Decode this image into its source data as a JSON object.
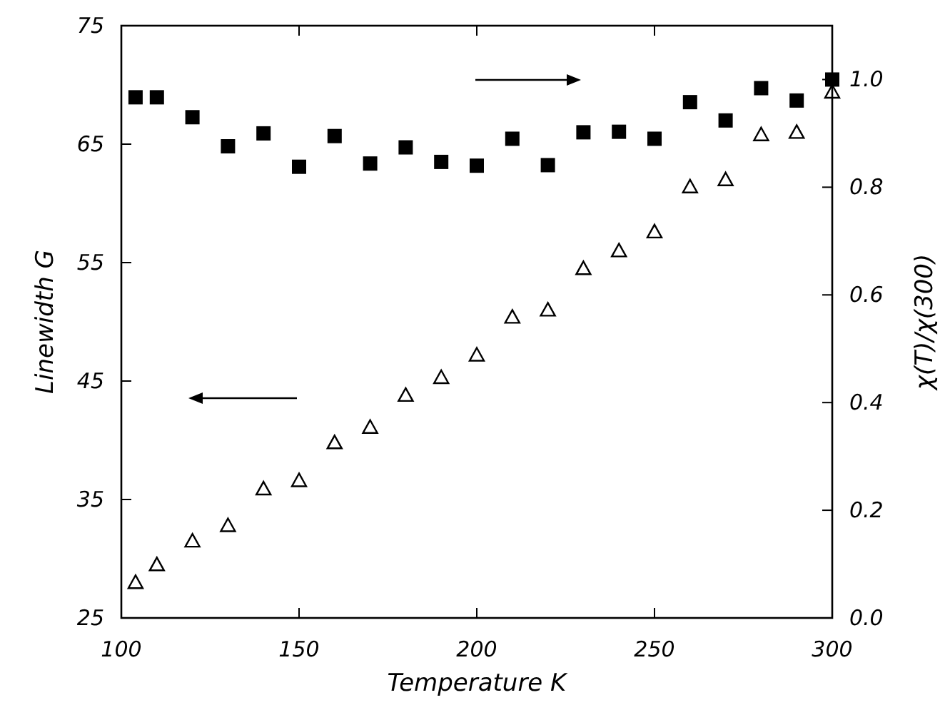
{
  "chart_data": {
    "type": "scatter",
    "xlabel": "Temperature K",
    "ylabel": "Linewidth G",
    "y2label": "χ(T)/χ(300)",
    "x": [
      104,
      110,
      120,
      130,
      140,
      150,
      160,
      170,
      180,
      190,
      200,
      210,
      220,
      230,
      240,
      250,
      260,
      270,
      280,
      290,
      300
    ],
    "xlim": [
      100,
      300
    ],
    "xticks": [
      100,
      150,
      200,
      250,
      300
    ],
    "ylim": [
      25,
      75
    ],
    "yticks": [
      25,
      35,
      45,
      55,
      65,
      75
    ],
    "y2lim": [
      0,
      1.1
    ],
    "y2ticks": [
      {
        "value": 0,
        "label": "0.0"
      },
      0.2,
      0.4,
      0.6,
      0.8,
      {
        "value": 1,
        "label": "1.0"
      }
    ],
    "grid": false,
    "series": [
      {
        "color": "#000000",
        "marker": "triangle",
        "values": [
          28.0,
          29.5,
          31.5,
          32.8,
          35.9,
          36.6,
          39.8,
          41.1,
          43.8,
          45.3,
          47.2,
          50.4,
          51.0,
          54.5,
          56.0,
          57.6,
          61.4,
          62.0,
          65.8,
          66.0,
          69.4
        ]
      },
      {
        "color": "#000000",
        "marker": "square",
        "axis": "y2",
        "values": [
          0.967,
          0.967,
          0.93,
          0.876,
          0.9,
          0.838,
          0.895,
          0.844,
          0.874,
          0.847,
          0.84,
          0.89,
          0.841,
          0.902,
          0.903,
          0.89,
          0.958,
          0.924,
          0.984,
          0.961,
          1.0
        ]
      }
    ]
  }
}
